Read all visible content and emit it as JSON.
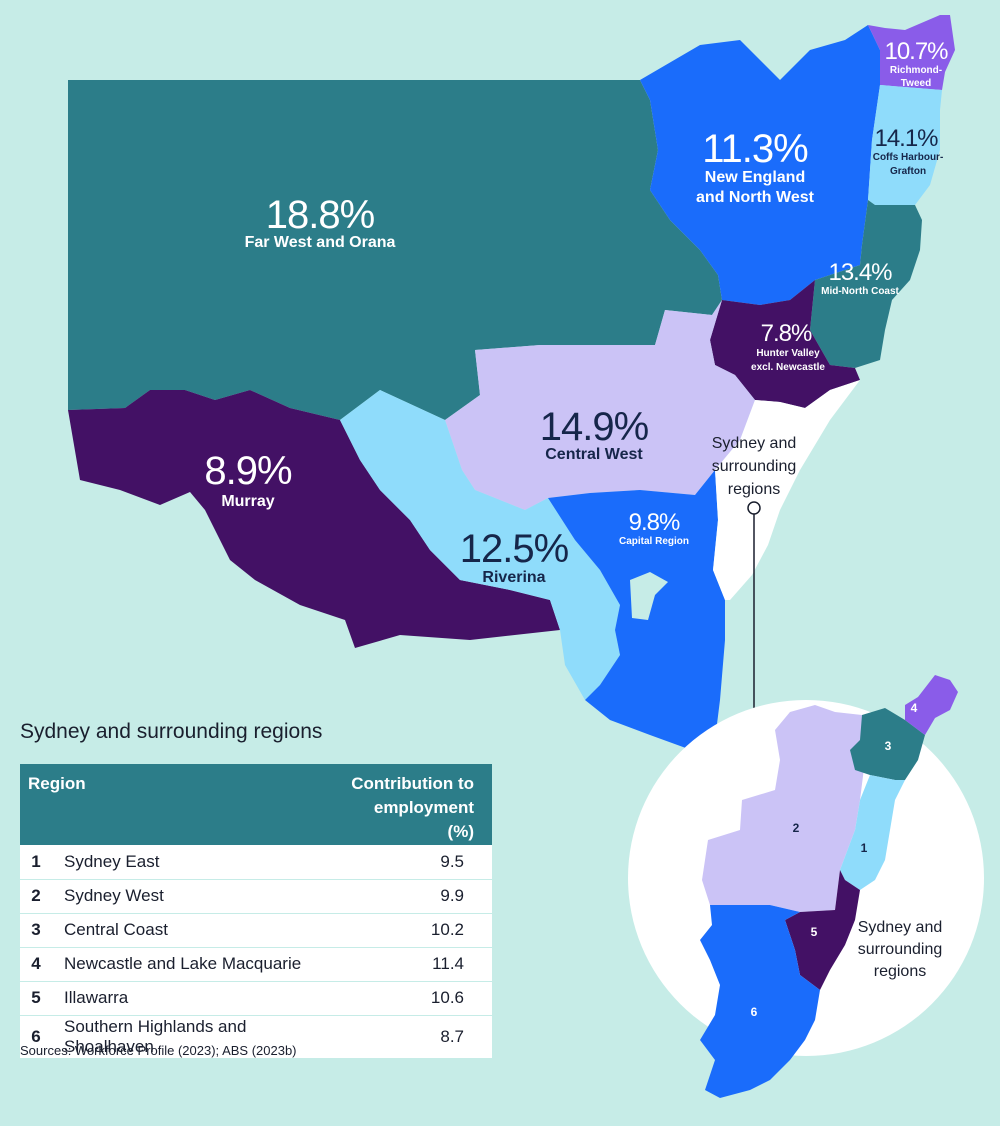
{
  "colors": {
    "background": "#c6ece7",
    "teal": "#2c7d89",
    "blue": "#1a6cfb",
    "light_blue": "#8fdcfb",
    "lavender": "#cbc3f6",
    "dark_purple": "#431165",
    "purple": "#8a5ce9",
    "white": "#ffffff"
  },
  "regions": [
    {
      "id": "far-west",
      "pct": "18.8%",
      "name": "Far West and Orana",
      "color": "teal"
    },
    {
      "id": "new-england",
      "pct": "11.3%",
      "name_lines": [
        "New England",
        "and North West"
      ],
      "color": "blue"
    },
    {
      "id": "richmond-tweed",
      "pct": "10.7%",
      "name_lines": [
        "Richmond-",
        "Tweed"
      ],
      "color": "purple"
    },
    {
      "id": "coffs-harbour",
      "pct": "14.1%",
      "name_lines": [
        "Coffs Harbour-",
        "Grafton"
      ],
      "color": "light_blue"
    },
    {
      "id": "mid-north-coast",
      "pct": "13.4%",
      "name": "Mid-North Coast",
      "color": "teal"
    },
    {
      "id": "hunter-valley",
      "pct": "7.8%",
      "name_lines": [
        "Hunter Valley",
        "excl. Newcastle"
      ],
      "color": "dark_purple"
    },
    {
      "id": "central-west",
      "pct": "14.9%",
      "name": "Central West",
      "color": "lavender"
    },
    {
      "id": "murray",
      "pct": "8.9%",
      "name": "Murray",
      "color": "dark_purple"
    },
    {
      "id": "riverina",
      "pct": "12.5%",
      "name": "Riverina",
      "color": "light_blue"
    },
    {
      "id": "capital-region",
      "pct": "9.8%",
      "name": "Capital Region",
      "color": "blue"
    }
  ],
  "sydney_callout_lines": [
    "Sydney and",
    "surrounding",
    "regions"
  ],
  "inset": {
    "numbers": [
      "1",
      "2",
      "3",
      "4",
      "5",
      "6"
    ],
    "label_lines": [
      "Sydney and",
      "surrounding",
      "regions"
    ]
  },
  "table": {
    "title": "Sydney and surrounding regions",
    "header_region": "Region",
    "header_value_lines": [
      "Contribution to",
      "employment (%)"
    ],
    "rows": [
      {
        "num": "1",
        "region": "Sydney East",
        "value": "9.5"
      },
      {
        "num": "2",
        "region": "Sydney West",
        "value": "9.9"
      },
      {
        "num": "3",
        "region": "Central Coast",
        "value": "10.2"
      },
      {
        "num": "4",
        "region": "Newcastle and Lake Macquarie",
        "value": "11.4"
      },
      {
        "num": "5",
        "region": "Illawarra",
        "value": "10.6"
      },
      {
        "num": "6",
        "region": "Southern Highlands and Shoalhaven",
        "value": "8.7"
      }
    ]
  },
  "sources": "Sources: Workforce Profile (2023); ABS (2023b)"
}
